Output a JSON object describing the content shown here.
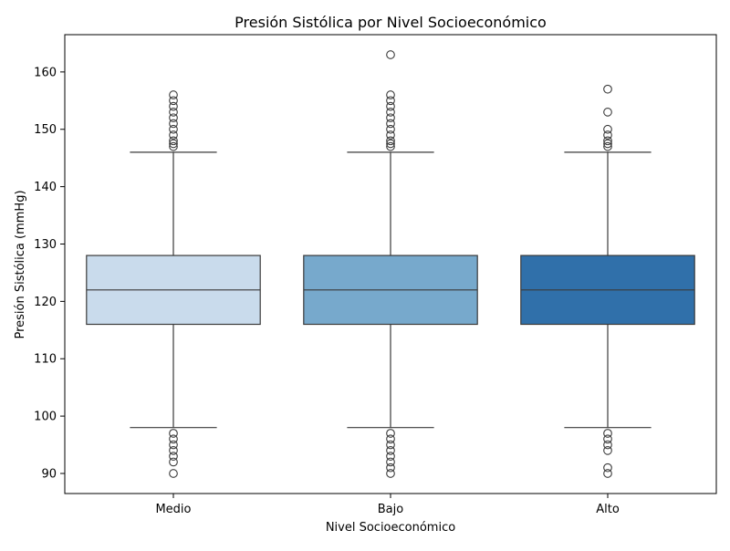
{
  "chart_data": {
    "type": "box",
    "title": "Presión Sistólica por Nivel Socioeconómico",
    "xlabel": "Nivel Socioeconómico",
    "ylabel": "Presión Sistólica (mmHg)",
    "ylim": [
      86.5,
      166.5
    ],
    "yticks": [
      90,
      100,
      110,
      120,
      130,
      140,
      150,
      160
    ],
    "grid": false,
    "categories": [
      "Medio",
      "Bajo",
      "Alto"
    ],
    "boxes": [
      {
        "category": "Medio",
        "whisker_low": 98,
        "q1": 116,
        "median": 122,
        "q3": 128,
        "whisker_high": 146,
        "color": "#c9dbec",
        "outliers": [
          90,
          92,
          93,
          94,
          95,
          96,
          97,
          147,
          147.5,
          148,
          149,
          150,
          151,
          152,
          153,
          154,
          155,
          156
        ]
      },
      {
        "category": "Bajo",
        "whisker_low": 98,
        "q1": 116,
        "median": 122,
        "q3": 128,
        "whisker_high": 146,
        "color": "#77a9cc",
        "outliers": [
          90,
          91,
          92,
          93,
          94,
          95,
          96,
          97,
          147,
          147.5,
          148,
          149,
          150,
          151,
          152,
          153,
          154,
          155,
          156,
          163
        ]
      },
      {
        "category": "Alto",
        "whisker_low": 98,
        "q1": 116,
        "median": 122,
        "q3": 128,
        "whisker_high": 146,
        "color": "#3070aa",
        "outliers": [
          90,
          91,
          94,
          95,
          96,
          97,
          147,
          147.5,
          148,
          149,
          150,
          153,
          157
        ]
      }
    ],
    "line_color": "#3a3a3a"
  }
}
